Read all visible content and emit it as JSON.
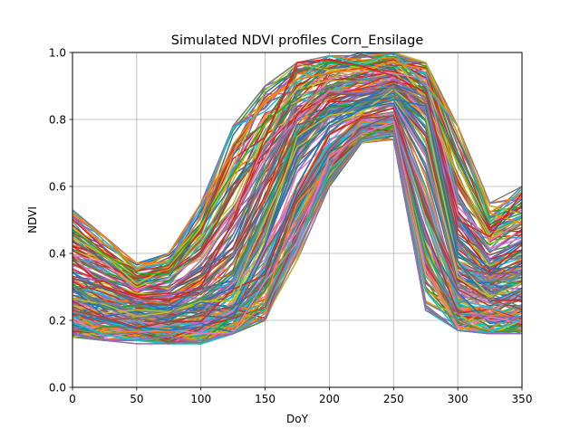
{
  "chart_data": {
    "type": "line",
    "title": "Simulated NDVI profiles Corn_Ensilage",
    "xlabel": "DoY",
    "ylabel": "NDVI",
    "xlim": [
      0,
      350
    ],
    "ylim": [
      0.0,
      1.0
    ],
    "grid": true,
    "legend": "none",
    "x": [
      0,
      25,
      50,
      75,
      100,
      125,
      150,
      175,
      200,
      225,
      250,
      275,
      300,
      325,
      350
    ],
    "xticks": [
      "0",
      "50",
      "100",
      "150",
      "200",
      "250",
      "300",
      "350"
    ],
    "yticks": [
      "0.0",
      "0.2",
      "0.4",
      "0.6",
      "0.8",
      "1.0"
    ],
    "series_count": 200,
    "series_colors": [
      "#1f77b4",
      "#ff7f0e",
      "#2ca02c",
      "#d62728",
      "#9467bd",
      "#8c564b",
      "#e377c2",
      "#7f7f7f",
      "#bcbd22",
      "#17becf"
    ],
    "profile_envelope": {
      "x": [
        0,
        25,
        50,
        75,
        100,
        125,
        150,
        175,
        200,
        225,
        250,
        275,
        300,
        325,
        350
      ],
      "low": [
        0.15,
        0.14,
        0.14,
        0.13,
        0.13,
        0.16,
        0.2,
        0.38,
        0.6,
        0.73,
        0.74,
        0.23,
        0.17,
        0.16,
        0.16
      ],
      "typical": [
        0.28,
        0.25,
        0.23,
        0.23,
        0.24,
        0.3,
        0.5,
        0.72,
        0.82,
        0.85,
        0.88,
        0.8,
        0.35,
        0.3,
        0.33
      ],
      "high": [
        0.53,
        0.45,
        0.37,
        0.4,
        0.55,
        0.78,
        0.9,
        0.97,
        0.99,
        1.0,
        1.0,
        0.97,
        0.78,
        0.55,
        0.6
      ]
    },
    "example_series": [
      {
        "values": [
          0.52,
          0.45,
          0.35,
          0.4,
          0.55,
          0.7,
          0.86,
          0.92,
          0.94,
          0.95,
          0.97,
          0.95,
          0.78,
          0.52,
          0.49
        ]
      },
      {
        "values": [
          0.16,
          0.14,
          0.13,
          0.13,
          0.14,
          0.16,
          0.21,
          0.4,
          0.62,
          0.74,
          0.76,
          0.24,
          0.17,
          0.16,
          0.16
        ]
      },
      {
        "values": [
          0.3,
          0.24,
          0.2,
          0.22,
          0.28,
          0.4,
          0.65,
          0.85,
          0.9,
          0.92,
          0.89,
          0.7,
          0.3,
          0.26,
          0.35
        ]
      },
      {
        "values": [
          0.22,
          0.2,
          0.18,
          0.17,
          0.18,
          0.22,
          0.35,
          0.6,
          0.78,
          0.83,
          0.86,
          0.84,
          0.4,
          0.34,
          0.41
        ]
      },
      {
        "values": [
          0.38,
          0.3,
          0.27,
          0.26,
          0.3,
          0.5,
          0.75,
          0.97,
          0.98,
          0.96,
          0.93,
          0.88,
          0.5,
          0.45,
          0.58
        ]
      }
    ]
  }
}
